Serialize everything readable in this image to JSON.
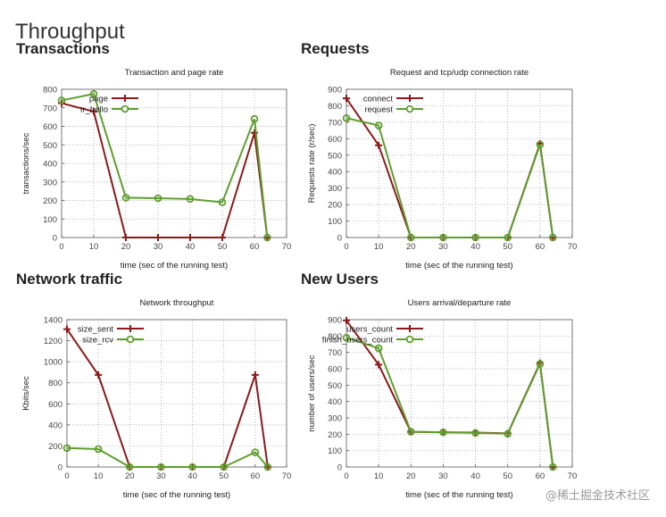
{
  "page": {
    "title": "Throughput"
  },
  "sections": [
    {
      "title": "Transactions"
    },
    {
      "title": "Requests"
    },
    {
      "title": "Network traffic"
    },
    {
      "title": "New Users"
    }
  ],
  "watermark": "@稀土掘金技术社区",
  "colors": {
    "series_1": "#8b1a1a",
    "series_2": "#5e9e2e",
    "grid": "#9a9a9a"
  },
  "chart_data": [
    {
      "type": "line",
      "title": "Transaction and page rate",
      "xlabel": "time (sec of the running test)",
      "ylabel": "transactions/sec",
      "xlim": [
        0,
        70
      ],
      "ylim": [
        0,
        800
      ],
      "xticks": [
        0,
        10,
        20,
        30,
        40,
        50,
        60,
        70
      ],
      "yticks": [
        0,
        100,
        200,
        300,
        400,
        500,
        600,
        700,
        800
      ],
      "grid": true,
      "legend_position": "top-left",
      "series": [
        {
          "name": "page",
          "marker": "plus",
          "x": [
            0,
            10,
            20,
            30,
            40,
            50,
            60,
            64
          ],
          "y": [
            725,
            680,
            0,
            0,
            0,
            0,
            565,
            0
          ]
        },
        {
          "name": "tr_hello",
          "marker": "circle",
          "x": [
            0,
            10,
            20,
            30,
            40,
            50,
            60,
            64
          ],
          "y": [
            740,
            775,
            215,
            212,
            208,
            190,
            640,
            0
          ]
        }
      ]
    },
    {
      "type": "line",
      "title": "Request and tcp/udp connection rate",
      "xlabel": "time (sec of the running test)",
      "ylabel": "Requests rate (r/sec)",
      "xlim": [
        0,
        70
      ],
      "ylim": [
        0,
        900
      ],
      "xticks": [
        0,
        10,
        20,
        30,
        40,
        50,
        60,
        70
      ],
      "yticks": [
        0,
        100,
        200,
        300,
        400,
        500,
        600,
        700,
        800,
        900
      ],
      "grid": true,
      "legend_position": "top-left",
      "series": [
        {
          "name": "connect",
          "marker": "plus",
          "x": [
            0,
            10,
            20,
            30,
            40,
            50,
            60,
            64
          ],
          "y": [
            845,
            560,
            0,
            0,
            0,
            0,
            570,
            0
          ]
        },
        {
          "name": "request",
          "marker": "circle",
          "x": [
            0,
            10,
            20,
            30,
            40,
            50,
            60,
            64
          ],
          "y": [
            725,
            680,
            0,
            0,
            0,
            0,
            565,
            0
          ]
        }
      ]
    },
    {
      "type": "line",
      "title": "Network throughput",
      "xlabel": "time (sec of the running test)",
      "ylabel": "Kbits/sec",
      "xlim": [
        0,
        70
      ],
      "ylim": [
        0,
        1400
      ],
      "xticks": [
        0,
        10,
        20,
        30,
        40,
        50,
        60,
        70
      ],
      "yticks": [
        0,
        200,
        400,
        600,
        800,
        1000,
        1200,
        1400
      ],
      "grid": true,
      "legend_position": "top-left",
      "series": [
        {
          "name": "size_sent",
          "marker": "plus",
          "x": [
            0,
            10,
            20,
            30,
            40,
            50,
            60,
            64
          ],
          "y": [
            1310,
            875,
            0,
            0,
            0,
            0,
            875,
            0
          ]
        },
        {
          "name": "size_rcv",
          "marker": "circle",
          "x": [
            0,
            10,
            20,
            30,
            40,
            50,
            60,
            64
          ],
          "y": [
            180,
            170,
            0,
            0,
            0,
            0,
            140,
            0
          ]
        }
      ]
    },
    {
      "type": "line",
      "title": "Users arrival/departure rate",
      "xlabel": "time (sec of the running test)",
      "ylabel": "number of users/sec",
      "xlim": [
        0,
        70
      ],
      "ylim": [
        0,
        900
      ],
      "xticks": [
        0,
        10,
        20,
        30,
        40,
        50,
        60,
        70
      ],
      "yticks": [
        0,
        100,
        200,
        300,
        400,
        500,
        600,
        700,
        800,
        900
      ],
      "grid": true,
      "legend_position": "top-left",
      "series": [
        {
          "name": "users_count",
          "marker": "plus",
          "x": [
            0,
            10,
            20,
            30,
            40,
            50,
            60,
            64
          ],
          "y": [
            895,
            625,
            215,
            212,
            210,
            205,
            635,
            0
          ]
        },
        {
          "name": "finish_users_count",
          "marker": "circle",
          "x": [
            0,
            10,
            20,
            30,
            40,
            50,
            60,
            64
          ],
          "y": [
            790,
            725,
            215,
            212,
            208,
            203,
            630,
            0
          ]
        }
      ]
    }
  ]
}
